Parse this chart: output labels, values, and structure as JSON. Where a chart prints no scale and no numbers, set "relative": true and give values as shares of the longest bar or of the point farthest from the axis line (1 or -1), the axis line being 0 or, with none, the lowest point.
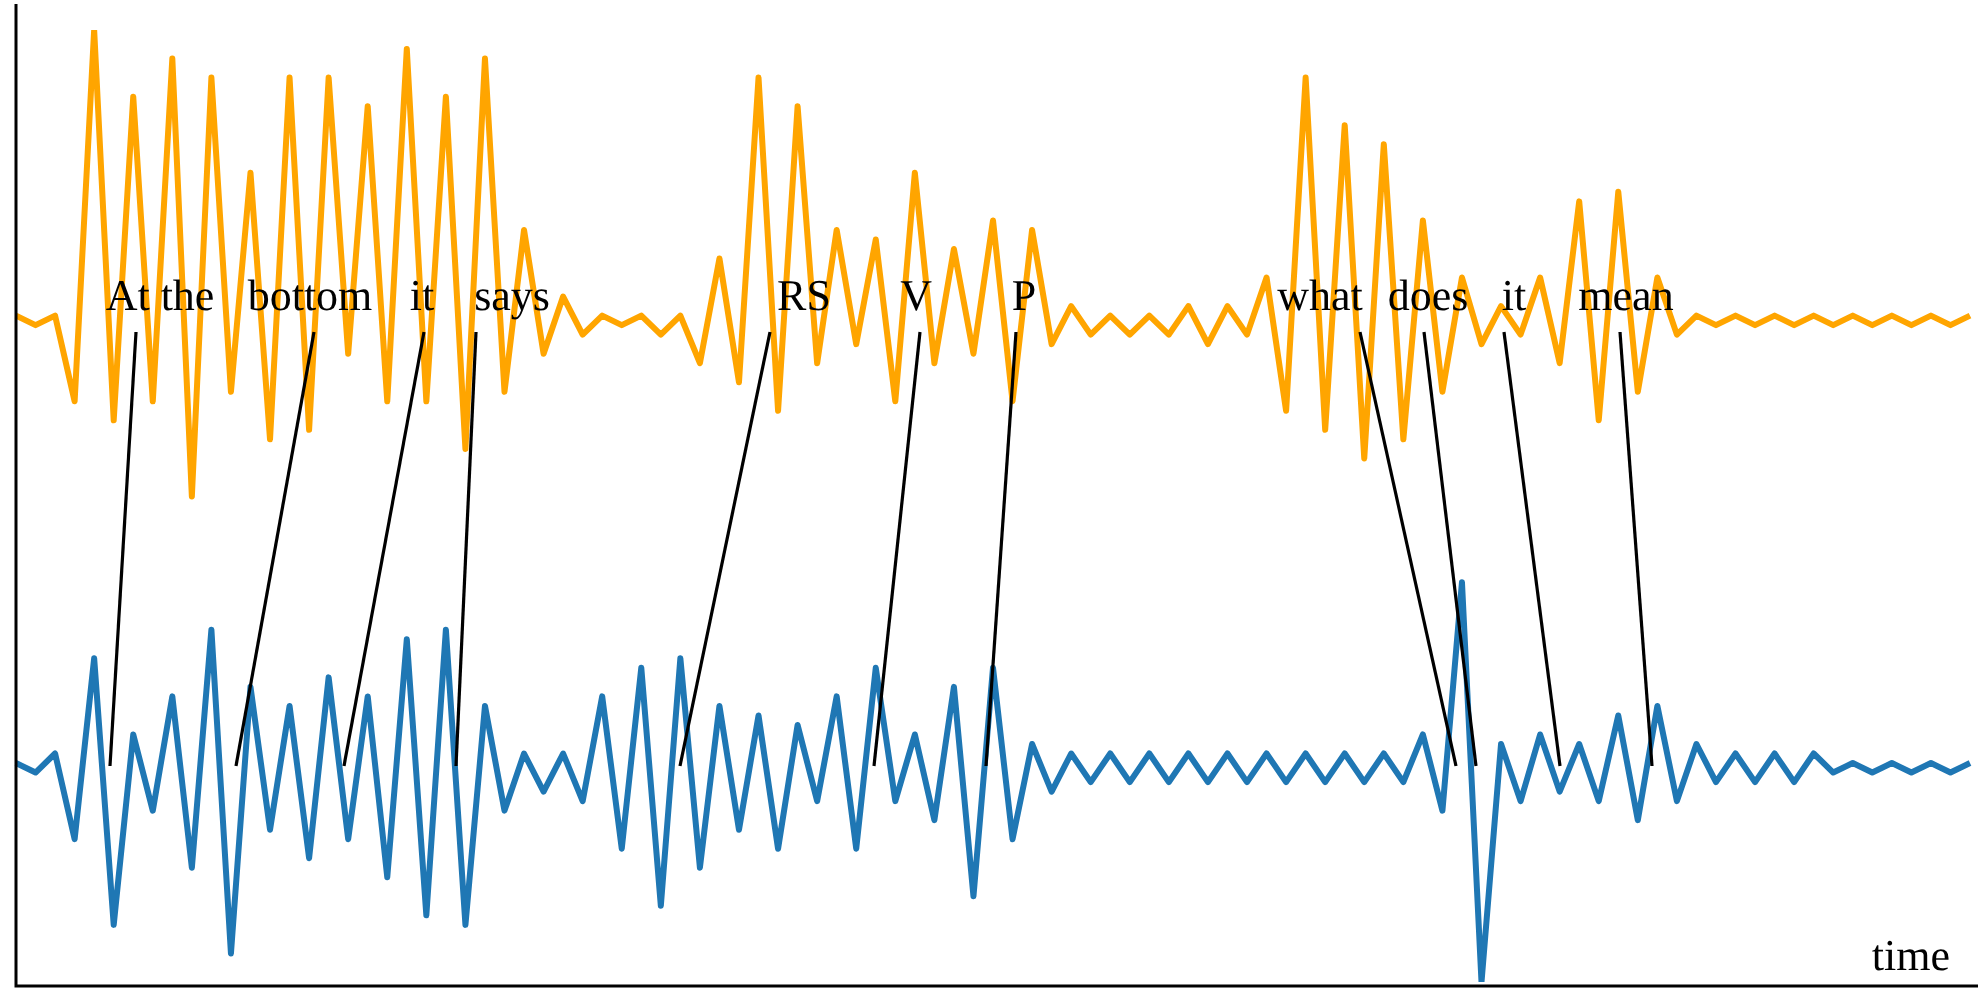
{
  "chart_data": {
    "type": "line",
    "relative": true,
    "xlabel": "time",
    "marker": "none",
    "categories": [
      null,
      null,
      null,
      null,
      null,
      null,
      null,
      null,
      null,
      null,
      null,
      null,
      null,
      null,
      null,
      null,
      null,
      null,
      null,
      null,
      null,
      null,
      null,
      null,
      null,
      null,
      null,
      null,
      null,
      null,
      null,
      null,
      null,
      null,
      null,
      null,
      null,
      null,
      null,
      null,
      null,
      null,
      null,
      null,
      null,
      null,
      null,
      null,
      null,
      null,
      null,
      null,
      null,
      null,
      null,
      null,
      null,
      null,
      null,
      null,
      null,
      null,
      null,
      null,
      null,
      null,
      null,
      null,
      null,
      null,
      null,
      null,
      null,
      null,
      null,
      null,
      null,
      null,
      null,
      null,
      null,
      null,
      null,
      null,
      null,
      null,
      null,
      null,
      null,
      null,
      null,
      null,
      null,
      null,
      null,
      null,
      null,
      null,
      null,
      null,
      null
    ],
    "series": [
      {
        "color": "#ffa500",
        "values": [
          0.7,
          0.69,
          0.7,
          0.61,
          1.0,
          0.59,
          0.93,
          0.61,
          0.97,
          0.51,
          0.95,
          0.62,
          0.85,
          0.57,
          0.95,
          0.58,
          0.95,
          0.66,
          0.92,
          0.61,
          0.98,
          0.61,
          0.93,
          0.56,
          0.97,
          0.62,
          0.79,
          0.66,
          0.72,
          0.68,
          0.7,
          0.69,
          0.7,
          0.68,
          0.7,
          0.65,
          0.76,
          0.63,
          0.95,
          0.6,
          0.92,
          0.65,
          0.79,
          0.67,
          0.78,
          0.61,
          0.85,
          0.65,
          0.77,
          0.66,
          0.8,
          0.61,
          0.79,
          0.67,
          0.71,
          0.68,
          0.7,
          0.68,
          0.7,
          0.68,
          0.71,
          0.67,
          0.71,
          0.68,
          0.74,
          0.6,
          0.95,
          0.58,
          0.9,
          0.55,
          0.88,
          0.57,
          0.8,
          0.62,
          0.74,
          0.67,
          0.71,
          0.68,
          0.74,
          0.65,
          0.82,
          0.59,
          0.83,
          0.62,
          0.74,
          0.68,
          0.7,
          0.69,
          0.7,
          0.69,
          0.7,
          0.69,
          0.7,
          0.69,
          0.7,
          0.69,
          0.7,
          0.69,
          0.7,
          0.69,
          0.7
        ]
      },
      {
        "color": "#1f77b4",
        "values": [
          0.23,
          0.22,
          0.24,
          0.15,
          0.34,
          0.06,
          0.26,
          0.18,
          0.3,
          0.12,
          0.37,
          0.03,
          0.31,
          0.16,
          0.29,
          0.13,
          0.32,
          0.15,
          0.3,
          0.11,
          0.36,
          0.07,
          0.37,
          0.06,
          0.29,
          0.18,
          0.24,
          0.2,
          0.24,
          0.19,
          0.3,
          0.14,
          0.33,
          0.08,
          0.34,
          0.12,
          0.29,
          0.16,
          0.28,
          0.14,
          0.27,
          0.19,
          0.3,
          0.14,
          0.33,
          0.19,
          0.26,
          0.17,
          0.31,
          0.09,
          0.33,
          0.15,
          0.25,
          0.2,
          0.24,
          0.21,
          0.24,
          0.21,
          0.24,
          0.21,
          0.24,
          0.21,
          0.24,
          0.21,
          0.24,
          0.21,
          0.24,
          0.21,
          0.24,
          0.21,
          0.24,
          0.21,
          0.26,
          0.18,
          0.42,
          0.0,
          0.25,
          0.19,
          0.26,
          0.2,
          0.25,
          0.19,
          0.28,
          0.17,
          0.29,
          0.19,
          0.25,
          0.21,
          0.24,
          0.21,
          0.24,
          0.21,
          0.24,
          0.22,
          0.23,
          0.22,
          0.23,
          0.22,
          0.23,
          0.22,
          0.23
        ]
      }
    ],
    "annotations": [
      "At the",
      "bottom",
      "it",
      "says",
      "RS",
      "V",
      "P",
      "what",
      "does",
      "it",
      "mean"
    ]
  }
}
